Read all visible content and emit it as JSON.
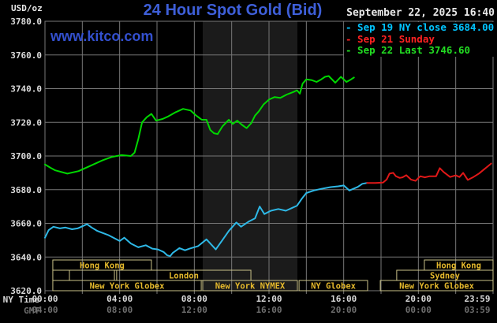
{
  "header": {
    "unit_label": "USD/oz",
    "title": "24 Hour Spot Gold (Bid)",
    "datetime": "September 22, 2025 16:40",
    "watermark": "www.kitco.com"
  },
  "legend": {
    "items": [
      {
        "marker": "-",
        "text": "Sep 19 NY close 3684.00",
        "color": "#00c4ff"
      },
      {
        "marker": "-",
        "text": "Sep 21 Sunday",
        "color": "#ff2222"
      },
      {
        "marker": "-",
        "text": "Sep 22 Last 3746.60",
        "color": "#22dd22"
      }
    ]
  },
  "axes": {
    "rows": [
      {
        "label": "NY Time",
        "ticks": [
          "00:00",
          "04:00",
          "08:00",
          "12:00",
          "16:00",
          "20:00",
          "23:59"
        ],
        "color": "#d8d8d8"
      },
      {
        "label": "GMT",
        "ticks": [
          "04:00",
          "08:00",
          "12:00",
          "16:00",
          "20:00",
          "00:00",
          "03:59"
        ],
        "color": "#6e6e6e"
      }
    ],
    "tick_hours": [
      0,
      4,
      8,
      12,
      16,
      20,
      24
    ],
    "y_tick_labels": [
      "3780.0",
      "3760.0",
      "3740.0",
      "3720.0",
      "3700.0",
      "3680.0",
      "3660.0",
      "3640.0",
      "3620.0"
    ],
    "y_tick_values": [
      3780,
      3760,
      3740,
      3720,
      3700,
      3680,
      3660,
      3640,
      3620
    ]
  },
  "sessions": [
    {
      "row": 0,
      "start_h": 0.42,
      "end_h": 5.7,
      "label": "Hong Kong"
    },
    {
      "row": 0,
      "start_h": 20.32,
      "end_h": 24.0,
      "label": "Hong Kong"
    },
    {
      "row": 1,
      "start_h": 0.42,
      "end_h": 1.31,
      "label": ""
    },
    {
      "row": 1,
      "start_h": 1.31,
      "end_h": 3.72,
      "label": ""
    },
    {
      "row": 1,
      "start_h": 3.84,
      "end_h": 11.03,
      "label": "London"
    },
    {
      "row": 1,
      "start_h": 18.84,
      "end_h": 24.0,
      "label": "Sydney"
    },
    {
      "row": 2,
      "start_h": 0.42,
      "end_h": 8.37,
      "label": "New York Globex"
    },
    {
      "row": 2,
      "start_h": 8.45,
      "end_h": 13.52,
      "label": "New York NYMEX"
    },
    {
      "row": 2,
      "start_h": 13.61,
      "end_h": 17.28,
      "label": "NY Globex"
    },
    {
      "row": 2,
      "start_h": 17.96,
      "end_h": 24.0,
      "label": "New York Globex"
    }
  ],
  "chart_data": {
    "type": "line",
    "title": "24 Hour Spot Gold (Bid)",
    "xlabel": "NY Time (hours 00:00-23:59)",
    "ylabel": "USD/oz",
    "ylim": [
      3620,
      3780
    ],
    "xlim_hours": [
      0,
      24
    ],
    "grid": true,
    "legend_position": "top-right",
    "highlight_band_hours": [
      8.45,
      13.52
    ],
    "colors": {
      "background": "#000000",
      "grid": "#777777",
      "band": "#1b1b1b",
      "session_border": "#cac289",
      "session_text": "#e5b92c"
    },
    "series": [
      {
        "name": "Sep 19 NY close 3684.00",
        "color": "#2eb8e6",
        "close": 3684.0,
        "points": [
          [
            0,
            3651.5
          ],
          [
            0.2,
            3656
          ],
          [
            0.45,
            3658
          ],
          [
            0.8,
            3657
          ],
          [
            1.1,
            3657.5
          ],
          [
            1.45,
            3656.5
          ],
          [
            1.75,
            3657
          ],
          [
            2.25,
            3659.5
          ],
          [
            2.5,
            3657.5
          ],
          [
            2.8,
            3655.5
          ],
          [
            3.4,
            3653
          ],
          [
            4.0,
            3649.5
          ],
          [
            4.25,
            3651.5
          ],
          [
            4.6,
            3648
          ],
          [
            5.0,
            3645.8
          ],
          [
            5.4,
            3647
          ],
          [
            5.75,
            3645
          ],
          [
            6.05,
            3644.5
          ],
          [
            6.35,
            3643
          ],
          [
            6.55,
            3641
          ],
          [
            6.7,
            3640.5
          ],
          [
            6.85,
            3642.5
          ],
          [
            7.2,
            3645.3
          ],
          [
            7.5,
            3644
          ],
          [
            7.75,
            3645
          ],
          [
            8.2,
            3646.5
          ],
          [
            8.65,
            3650.5
          ],
          [
            9.15,
            3644.5
          ],
          [
            9.5,
            3650
          ],
          [
            9.85,
            3655.5
          ],
          [
            10.25,
            3660.5
          ],
          [
            10.5,
            3658
          ],
          [
            10.9,
            3661
          ],
          [
            11.25,
            3663
          ],
          [
            11.5,
            3670
          ],
          [
            11.75,
            3665.5
          ],
          [
            12.1,
            3667.5
          ],
          [
            12.5,
            3668.5
          ],
          [
            12.9,
            3667.5
          ],
          [
            13.2,
            3669
          ],
          [
            13.5,
            3670.5
          ],
          [
            13.75,
            3674.5
          ],
          [
            14.0,
            3678
          ],
          [
            14.4,
            3679.5
          ],
          [
            14.8,
            3680.5
          ],
          [
            15.3,
            3681.5
          ],
          [
            15.7,
            3682
          ],
          [
            16.0,
            3682.5
          ],
          [
            16.3,
            3679.5
          ],
          [
            16.75,
            3681.6
          ],
          [
            17.0,
            3683.5
          ],
          [
            17.25,
            3684.0
          ]
        ]
      },
      {
        "name": "Sep 21 Sunday",
        "color": "#e01818",
        "points": [
          [
            17.25,
            3684
          ],
          [
            17.7,
            3684
          ],
          [
            18.1,
            3684.2
          ],
          [
            18.3,
            3686
          ],
          [
            18.45,
            3689.5
          ],
          [
            18.65,
            3690
          ],
          [
            18.8,
            3688
          ],
          [
            19.0,
            3687
          ],
          [
            19.15,
            3687.3
          ],
          [
            19.35,
            3688.6
          ],
          [
            19.6,
            3686
          ],
          [
            19.85,
            3685.2
          ],
          [
            20.1,
            3688
          ],
          [
            20.35,
            3687.3
          ],
          [
            20.6,
            3688
          ],
          [
            20.95,
            3688
          ],
          [
            21.15,
            3692.8
          ],
          [
            21.35,
            3690.5
          ],
          [
            21.7,
            3687.5
          ],
          [
            22.0,
            3688.5
          ],
          [
            22.2,
            3687.5
          ],
          [
            22.4,
            3690
          ],
          [
            22.65,
            3685.8
          ],
          [
            22.95,
            3687.5
          ],
          [
            23.25,
            3689.6
          ],
          [
            23.5,
            3691.9
          ],
          [
            23.7,
            3693.7
          ],
          [
            23.9,
            3695.5
          ]
        ]
      },
      {
        "name": "Sep 22 Last 3746.60",
        "color": "#00d800",
        "last": 3746.6,
        "points": [
          [
            0,
            3695
          ],
          [
            0.3,
            3693
          ],
          [
            0.55,
            3691.5
          ],
          [
            1.2,
            3689.5
          ],
          [
            1.8,
            3691
          ],
          [
            2.4,
            3694
          ],
          [
            3.1,
            3697.5
          ],
          [
            3.6,
            3699.5
          ],
          [
            4.1,
            3700.5
          ],
          [
            4.6,
            3700
          ],
          [
            4.8,
            3702
          ],
          [
            5.0,
            3710
          ],
          [
            5.2,
            3720
          ],
          [
            5.45,
            3723
          ],
          [
            5.7,
            3725
          ],
          [
            5.95,
            3721
          ],
          [
            6.3,
            3722
          ],
          [
            6.6,
            3723.5
          ],
          [
            7.0,
            3726
          ],
          [
            7.4,
            3728
          ],
          [
            7.8,
            3727
          ],
          [
            8.1,
            3724
          ],
          [
            8.4,
            3721.5
          ],
          [
            8.65,
            3721.5
          ],
          [
            8.85,
            3715.5
          ],
          [
            9.05,
            3713.5
          ],
          [
            9.25,
            3713
          ],
          [
            9.5,
            3717.5
          ],
          [
            9.85,
            3721.5
          ],
          [
            10.05,
            3719
          ],
          [
            10.3,
            3721
          ],
          [
            10.55,
            3718.5
          ],
          [
            10.8,
            3716.5
          ],
          [
            11.05,
            3719.5
          ],
          [
            11.25,
            3724
          ],
          [
            11.45,
            3726.5
          ],
          [
            11.7,
            3730.5
          ],
          [
            12.0,
            3733.5
          ],
          [
            12.3,
            3735
          ],
          [
            12.6,
            3734.5
          ],
          [
            12.95,
            3736.5
          ],
          [
            13.3,
            3738
          ],
          [
            13.5,
            3739
          ],
          [
            13.65,
            3737
          ],
          [
            13.8,
            3743
          ],
          [
            14.0,
            3745.5
          ],
          [
            14.3,
            3745
          ],
          [
            14.55,
            3744
          ],
          [
            14.8,
            3745.5
          ],
          [
            15.0,
            3747
          ],
          [
            15.2,
            3747.5
          ],
          [
            15.55,
            3743.5
          ],
          [
            15.85,
            3747
          ],
          [
            16.15,
            3744
          ],
          [
            16.4,
            3745.5
          ],
          [
            16.55,
            3746.6
          ]
        ]
      }
    ]
  }
}
